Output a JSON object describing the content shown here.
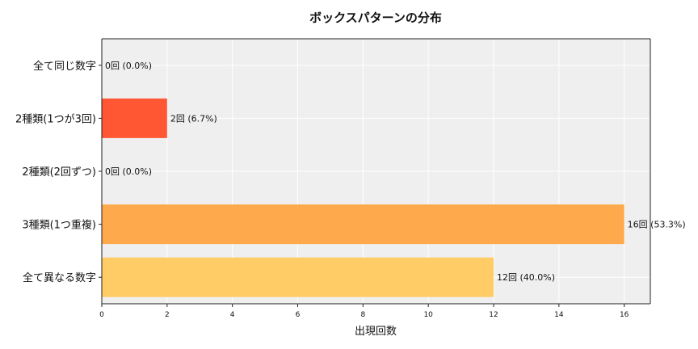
{
  "chart_data": {
    "type": "bar",
    "orientation": "horizontal",
    "title": "ボックスパターンの分布",
    "xlabel": "出現回数",
    "ylabel": "",
    "xlim": [
      0,
      16.8
    ],
    "xticks": [
      0,
      2,
      4,
      6,
      8,
      10,
      12,
      14,
      16
    ],
    "grid": true,
    "categories": [
      "全て同じ数字",
      "2種類(1つが3回)",
      "2種類(2回ずつ)",
      "3種類(1つ重複)",
      "全て異なる数字"
    ],
    "values": [
      0,
      2,
      0,
      16,
      12
    ],
    "data_labels": [
      "0回 (0.0%)",
      "2回 (6.7%)",
      "0回 (0.0%)",
      "16回 (53.3%)",
      "12回 (40.0%)"
    ],
    "colors": [
      "#ff5733",
      "#ff5733",
      "#ff5733",
      "#ffa94d",
      "#ffcc66"
    ]
  }
}
